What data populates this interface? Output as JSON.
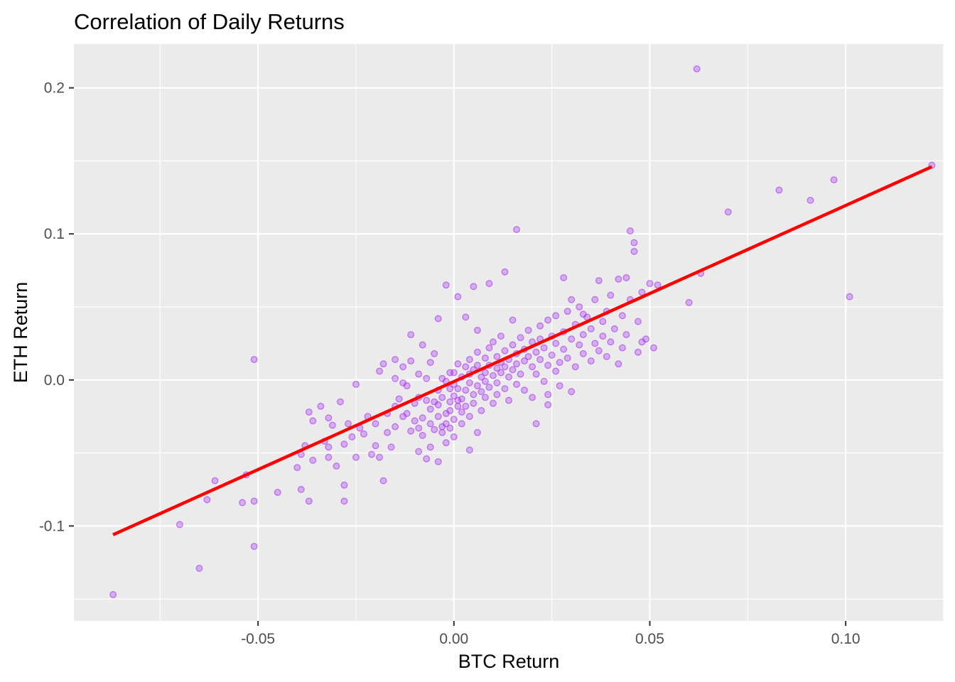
{
  "colors": {
    "panel": "#ebebeb",
    "point": "#a020f0",
    "fit_line": "#ff0000",
    "grid": "#ffffff"
  },
  "chart_data": {
    "type": "scatter",
    "title": "Correlation of Daily Returns",
    "xlabel": "BTC Return",
    "ylabel": "ETH Return",
    "xlim": [
      -0.097,
      0.125
    ],
    "ylim": [
      -0.165,
      0.23
    ],
    "x_ticks": [
      -0.05,
      0.0,
      0.05,
      0.1
    ],
    "x_tick_labels": [
      "-0.05",
      "0.00",
      "0.05",
      "0.10"
    ],
    "y_ticks": [
      -0.1,
      0.0,
      0.1,
      0.2
    ],
    "y_tick_labels": [
      "-0.1",
      "0.0",
      "0.1",
      "0.2"
    ],
    "grid": true,
    "legend": "none",
    "fit_line": {
      "x": [
        -0.087,
        0.122
      ],
      "y": [
        -0.106,
        0.146
      ]
    },
    "points": [
      [
        -0.087,
        -0.147
      ],
      [
        -0.07,
        -0.099
      ],
      [
        -0.065,
        -0.129
      ],
      [
        -0.063,
        -0.082
      ],
      [
        -0.061,
        -0.069
      ],
      [
        -0.054,
        -0.084
      ],
      [
        -0.053,
        -0.065
      ],
      [
        -0.051,
        -0.083
      ],
      [
        -0.051,
        -0.114
      ],
      [
        -0.051,
        0.014
      ],
      [
        -0.045,
        -0.077
      ],
      [
        -0.04,
        -0.06
      ],
      [
        -0.039,
        -0.051
      ],
      [
        -0.039,
        -0.075
      ],
      [
        -0.038,
        -0.045
      ],
      [
        -0.037,
        -0.083
      ],
      [
        -0.037,
        -0.022
      ],
      [
        -0.036,
        -0.055
      ],
      [
        -0.036,
        -0.028
      ],
      [
        -0.034,
        -0.018
      ],
      [
        -0.033,
        -0.042
      ],
      [
        -0.032,
        -0.026
      ],
      [
        -0.032,
        -0.053
      ],
      [
        -0.032,
        -0.046
      ],
      [
        -0.031,
        -0.031
      ],
      [
        -0.03,
        -0.059
      ],
      [
        -0.029,
        -0.015
      ],
      [
        -0.028,
        -0.083
      ],
      [
        -0.028,
        -0.072
      ],
      [
        -0.027,
        -0.03
      ],
      [
        -0.026,
        -0.039
      ],
      [
        -0.025,
        -0.003
      ],
      [
        -0.025,
        -0.053
      ],
      [
        -0.024,
        -0.033
      ],
      [
        -0.023,
        -0.037
      ],
      [
        -0.022,
        -0.025
      ],
      [
        -0.02,
        -0.03
      ],
      [
        -0.02,
        -0.045
      ],
      [
        -0.019,
        -0.053
      ],
      [
        -0.018,
        -0.069
      ],
      [
        -0.018,
        0.011
      ],
      [
        -0.017,
        -0.023
      ],
      [
        -0.016,
        -0.046
      ],
      [
        -0.015,
        0.014
      ],
      [
        -0.015,
        -0.018
      ],
      [
        -0.015,
        -0.032
      ],
      [
        -0.014,
        -0.013
      ],
      [
        -0.013,
        -0.025
      ],
      [
        -0.013,
        -0.002
      ],
      [
        -0.012,
        -0.023
      ],
      [
        -0.011,
        -0.035
      ],
      [
        -0.011,
        0.013
      ],
      [
        -0.01,
        -0.028
      ],
      [
        -0.01,
        -0.016
      ],
      [
        -0.009,
        -0.033
      ],
      [
        -0.009,
        -0.049
      ],
      [
        -0.009,
        -0.012
      ],
      [
        -0.008,
        -0.026
      ],
      [
        -0.008,
        -0.038
      ],
      [
        -0.007,
        -0.014
      ],
      [
        -0.007,
        -0.054
      ],
      [
        -0.007,
        0.001
      ],
      [
        -0.006,
        -0.02
      ],
      [
        -0.006,
        -0.03
      ],
      [
        -0.006,
        -0.046
      ],
      [
        -0.005,
        -0.015
      ],
      [
        -0.005,
        -0.034
      ],
      [
        -0.005,
        0.018
      ],
      [
        -0.004,
        -0.007
      ],
      [
        -0.004,
        -0.025
      ],
      [
        -0.004,
        -0.056
      ],
      [
        -0.004,
        -0.017
      ],
      [
        -0.003,
        -0.012
      ],
      [
        -0.003,
        -0.032
      ],
      [
        -0.003,
        -0.036
      ],
      [
        -0.003,
        0.001
      ],
      [
        -0.002,
        -0.043
      ],
      [
        -0.002,
        -0.023
      ],
      [
        -0.002,
        -0.03
      ],
      [
        -0.002,
        -0.001
      ],
      [
        -0.001,
        -0.015
      ],
      [
        -0.001,
        -0.033
      ],
      [
        -0.001,
        0.005
      ],
      [
        -0.001,
        -0.006
      ],
      [
        -0.001,
        -0.021
      ],
      [
        0.0,
        -0.027
      ],
      [
        0.0,
        0.005
      ],
      [
        0.0,
        -0.011
      ],
      [
        0.0,
        -0.003
      ],
      [
        0.0,
        -0.039
      ],
      [
        0.001,
        -0.014
      ],
      [
        0.001,
        -0.018
      ],
      [
        0.001,
        -0.006
      ],
      [
        0.001,
        0.011
      ],
      [
        0.002,
        -0.022
      ],
      [
        0.002,
        0.002
      ],
      [
        0.002,
        -0.03
      ],
      [
        0.002,
        -0.013
      ],
      [
        0.003,
        0.009
      ],
      [
        0.003,
        -0.007
      ],
      [
        0.003,
        -0.018
      ],
      [
        0.004,
        -0.002
      ],
      [
        0.004,
        0.014
      ],
      [
        0.004,
        -0.025
      ],
      [
        0.004,
        0.004
      ],
      [
        0.005,
        -0.01
      ],
      [
        0.005,
        -0.016
      ],
      [
        0.005,
        0.007
      ],
      [
        0.006,
        -0.004
      ],
      [
        0.006,
        0.019
      ],
      [
        0.006,
        -0.036
      ],
      [
        0.006,
        0.01
      ],
      [
        0.007,
        -0.008
      ],
      [
        0.007,
        0.002
      ],
      [
        0.007,
        -0.021
      ],
      [
        0.008,
        0.015
      ],
      [
        0.008,
        -0.001
      ],
      [
        0.008,
        0.005
      ],
      [
        0.008,
        -0.012
      ],
      [
        0.009,
        0.022
      ],
      [
        0.009,
        -0.005
      ],
      [
        0.009,
        0.01
      ],
      [
        0.01,
        0.003
      ],
      [
        0.01,
        -0.016
      ],
      [
        0.01,
        0.026
      ],
      [
        0.011,
        0.008
      ],
      [
        0.011,
        -0.002
      ],
      [
        0.011,
        0.016
      ],
      [
        0.011,
        -0.01
      ],
      [
        0.012,
        0.012
      ],
      [
        0.012,
        0.03
      ],
      [
        0.012,
        0.005
      ],
      [
        0.013,
        -0.006
      ],
      [
        0.013,
        0.02
      ],
      [
        0.013,
        0.009
      ],
      [
        0.014,
        -0.014
      ],
      [
        0.014,
        0.014
      ],
      [
        0.014,
        0.002
      ],
      [
        0.015,
        0.024
      ],
      [
        0.015,
        0.007
      ],
      [
        0.016,
        0.018
      ],
      [
        0.016,
        -0.003
      ],
      [
        0.016,
        0.011
      ],
      [
        0.017,
        0.029
      ],
      [
        0.017,
        0.004
      ],
      [
        0.018,
        0.021
      ],
      [
        0.018,
        0.013
      ],
      [
        0.018,
        -0.007
      ],
      [
        0.019,
        0.016
      ],
      [
        0.019,
        0.034
      ],
      [
        0.02,
        0.009
      ],
      [
        0.02,
        0.026
      ],
      [
        0.02,
        -0.012
      ],
      [
        0.021,
        0.019
      ],
      [
        0.021,
        0.004
      ],
      [
        0.022,
        0.037
      ],
      [
        0.022,
        0.014
      ],
      [
        0.022,
        0.028
      ],
      [
        0.023,
        -0.001
      ],
      [
        0.023,
        0.022
      ],
      [
        0.024,
        0.01
      ],
      [
        0.024,
        0.041
      ],
      [
        0.024,
        -0.017
      ],
      [
        0.025,
        0.017
      ],
      [
        0.025,
        0.03
      ],
      [
        0.026,
        0.006
      ],
      [
        0.026,
        0.025
      ],
      [
        0.026,
        0.044
      ],
      [
        0.027,
        0.012
      ],
      [
        0.027,
        -0.004
      ],
      [
        0.028,
        0.033
      ],
      [
        0.028,
        0.021
      ],
      [
        0.029,
        0.047
      ],
      [
        0.029,
        0.015
      ],
      [
        0.03,
        0.028
      ],
      [
        0.03,
        -0.008
      ],
      [
        0.031,
        0.038
      ],
      [
        0.031,
        0.009
      ],
      [
        0.032,
        0.024
      ],
      [
        0.032,
        0.05
      ],
      [
        0.033,
        0.018
      ],
      [
        0.033,
        0.031
      ],
      [
        0.034,
        0.043
      ],
      [
        0.035,
        0.013
      ],
      [
        0.035,
        0.035
      ],
      [
        0.036,
        0.025
      ],
      [
        0.036,
        0.055
      ],
      [
        0.037,
        0.02
      ],
      [
        0.038,
        0.04
      ],
      [
        0.038,
        0.03
      ],
      [
        0.039,
        0.047
      ],
      [
        0.039,
        0.016
      ],
      [
        0.04,
        0.058
      ],
      [
        0.04,
        0.026
      ],
      [
        0.041,
        0.035
      ],
      [
        0.042,
        0.069
      ],
      [
        0.042,
        0.011
      ],
      [
        0.043,
        0.044
      ],
      [
        0.043,
        0.022
      ],
      [
        0.044,
        0.07
      ],
      [
        0.044,
        0.031
      ],
      [
        0.045,
        0.102
      ],
      [
        0.045,
        0.055
      ],
      [
        0.046,
        0.088
      ],
      [
        0.046,
        0.094
      ],
      [
        0.047,
        0.04
      ],
      [
        0.047,
        0.019
      ],
      [
        0.048,
        0.06
      ],
      [
        0.049,
        0.028
      ],
      [
        0.05,
        0.066
      ],
      [
        0.051,
        0.022
      ],
      [
        0.052,
        0.065
      ],
      [
        0.016,
        0.103
      ],
      [
        0.013,
        0.074
      ],
      [
        0.009,
        0.066
      ],
      [
        0.005,
        0.064
      ],
      [
        0.001,
        0.057
      ],
      [
        -0.002,
        0.065
      ],
      [
        0.003,
        0.043
      ],
      [
        -0.004,
        0.042
      ],
      [
        0.06,
        0.053
      ],
      [
        0.062,
        0.213
      ],
      [
        0.063,
        0.073
      ],
      [
        0.07,
        0.115
      ],
      [
        0.083,
        0.13
      ],
      [
        0.091,
        0.123
      ],
      [
        0.097,
        0.137
      ],
      [
        0.101,
        0.057
      ],
      [
        0.122,
        0.147
      ],
      [
        0.028,
        0.07
      ],
      [
        0.033,
        0.045
      ],
      [
        -0.028,
        -0.044
      ],
      [
        -0.021,
        -0.051
      ],
      [
        -0.019,
        0.006
      ],
      [
        -0.015,
        0.001
      ],
      [
        -0.011,
        0.031
      ],
      [
        -0.008,
        0.024
      ],
      [
        -0.006,
        0.012
      ],
      [
        -0.013,
        0.009
      ],
      [
        -0.017,
        -0.036
      ],
      [
        -0.012,
        -0.004
      ],
      [
        -0.009,
        0.004
      ],
      [
        0.004,
        -0.048
      ],
      [
        0.006,
        0.034
      ],
      [
        0.015,
        0.041
      ],
      [
        0.021,
        -0.03
      ],
      [
        0.024,
        -0.01
      ],
      [
        0.03,
        0.055
      ],
      [
        0.037,
        0.068
      ],
      [
        0.048,
        0.026
      ]
    ]
  }
}
